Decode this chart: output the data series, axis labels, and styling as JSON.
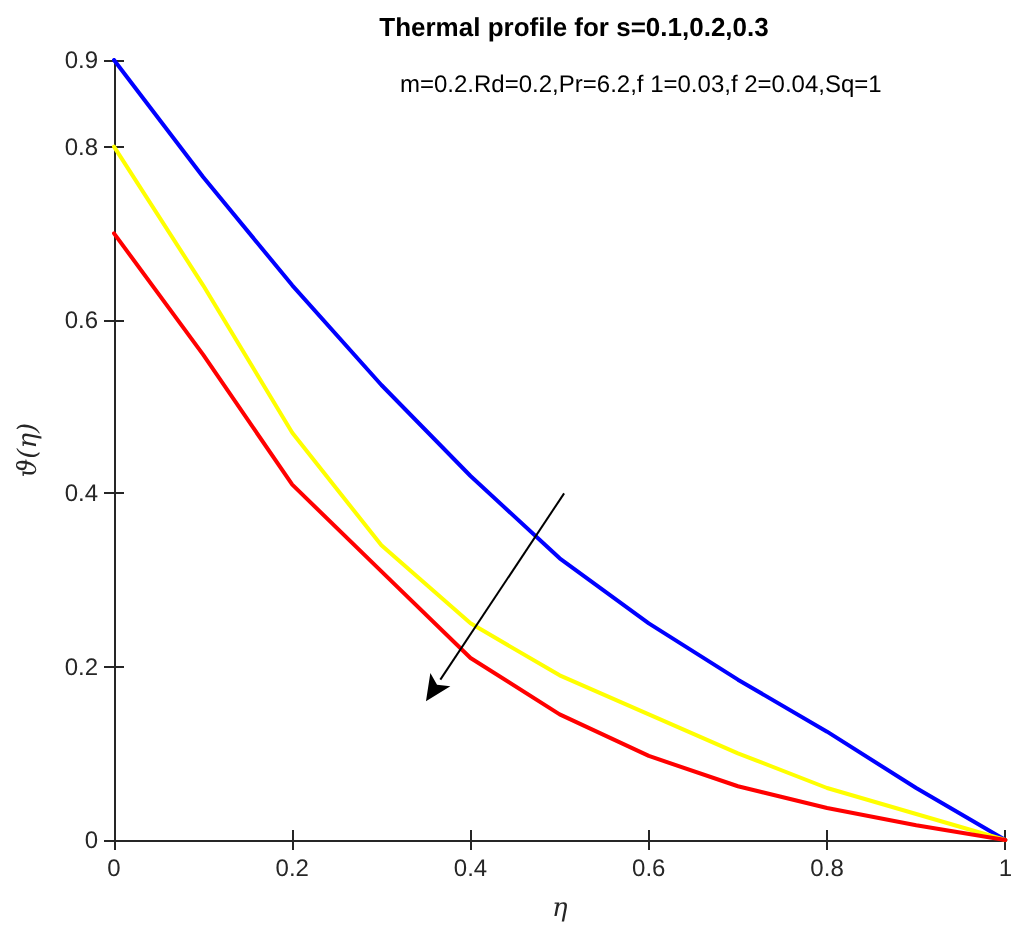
{
  "chart_data": {
    "type": "line",
    "title": "Thermal profile for s=0.1,0.2,0.3",
    "xlabel": "η",
    "ylabel": "ϑ(η)",
    "annotations": [
      "m=0.2.Rd=0.2,Pr=6.2,f 1=0.03,f 2=0.04,Sq=1"
    ],
    "x": [
      0,
      0.1,
      0.2,
      0.3,
      0.4,
      0.5,
      0.6,
      0.7,
      0.8,
      0.9,
      1
    ],
    "series": [
      {
        "color": "#0000ff",
        "values": [
          0.9,
          0.765,
          0.64,
          0.525,
          0.42,
          0.325,
          0.25,
          0.185,
          0.125,
          0.06,
          0
        ]
      },
      {
        "color": "#ffff00",
        "values": [
          0.8,
          0.64,
          0.47,
          0.34,
          0.25,
          0.19,
          0.145,
          0.1,
          0.06,
          0.03,
          0
        ]
      },
      {
        "color": "#ff0000",
        "values": [
          0.7,
          0.56,
          0.41,
          0.31,
          0.21,
          0.145,
          0.097,
          0.062,
          0.037,
          0.017,
          0
        ]
      }
    ],
    "xlim": [
      0,
      1
    ],
    "xticks": [
      0,
      0.2,
      0.4,
      0.6,
      0.8,
      1
    ],
    "ylim": [
      0,
      0.9
    ],
    "yticks": [
      0,
      0.2,
      0.4,
      0.6,
      0.8,
      0.9
    ],
    "marker": "none",
    "line_style": "solid"
  }
}
